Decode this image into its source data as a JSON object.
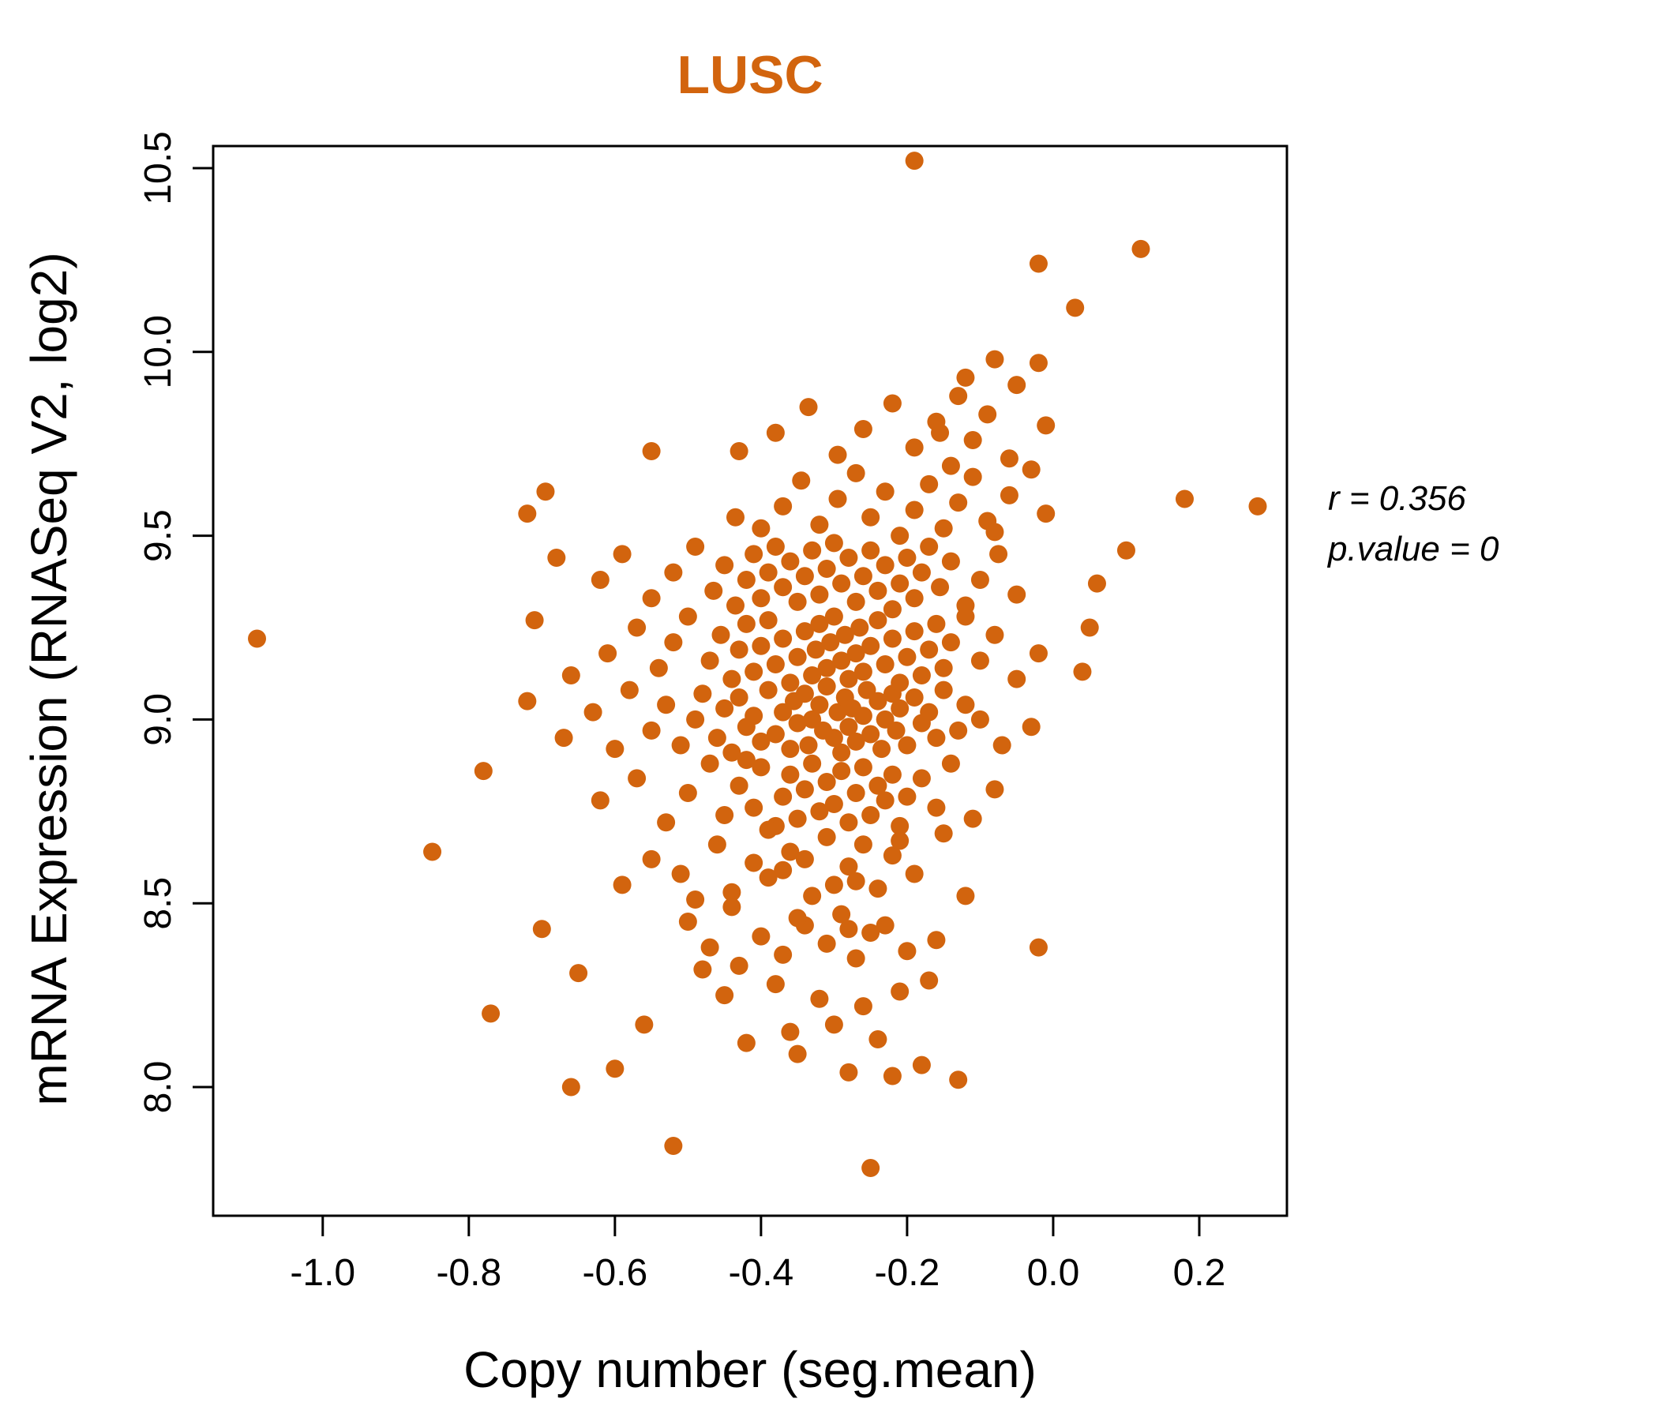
{
  "title": "LUSC",
  "colors": {
    "point": "#D2640E",
    "title": "#D2640E",
    "axis": "#000000"
  },
  "annotation": {
    "line1": "r = 0.356",
    "line2": "p.value = 0"
  },
  "chart_data": {
    "type": "scatter",
    "title": "LUSC",
    "xlabel": "Copy number (seg.mean)",
    "ylabel": "mRNA Expression (RNASeq V2, log2)",
    "xlim": [
      -1.15,
      0.32
    ],
    "ylim": [
      7.65,
      10.56
    ],
    "xticks": [
      -1.0,
      -0.8,
      -0.6,
      -0.4,
      -0.2,
      0.0,
      0.2
    ],
    "yticks": [
      8.0,
      8.5,
      9.0,
      9.5,
      10.0,
      10.5
    ],
    "grid": false,
    "legend": "none",
    "annotations": [
      "r = 0.356",
      "p.value = 0"
    ],
    "point_color": "#D2640E",
    "points": [
      [
        -0.25,
        7.78
      ],
      [
        -0.52,
        7.84
      ],
      [
        -0.66,
        8.0
      ],
      [
        -0.6,
        8.05
      ],
      [
        -0.22,
        8.03
      ],
      [
        -0.18,
        8.06
      ],
      [
        -0.35,
        8.09
      ],
      [
        -0.13,
        8.02
      ],
      [
        -0.28,
        8.04
      ],
      [
        -0.77,
        8.2
      ],
      [
        -0.56,
        8.17
      ],
      [
        -0.42,
        8.12
      ],
      [
        -0.36,
        8.15
      ],
      [
        -0.3,
        8.17
      ],
      [
        -0.26,
        8.22
      ],
      [
        -0.21,
        8.26
      ],
      [
        -0.45,
        8.25
      ],
      [
        -0.38,
        8.28
      ],
      [
        -0.24,
        8.13
      ],
      [
        -0.17,
        8.29
      ],
      [
        -0.32,
        8.24
      ],
      [
        -0.7,
        8.43
      ],
      [
        -0.65,
        8.31
      ],
      [
        -0.47,
        8.38
      ],
      [
        -0.5,
        8.45
      ],
      [
        -0.43,
        8.33
      ],
      [
        -0.4,
        8.41
      ],
      [
        -0.37,
        8.36
      ],
      [
        -0.34,
        8.44
      ],
      [
        -0.31,
        8.39
      ],
      [
        -0.29,
        8.47
      ],
      [
        -0.27,
        8.35
      ],
      [
        -0.25,
        8.42
      ],
      [
        -0.23,
        8.44
      ],
      [
        -0.2,
        8.37
      ],
      [
        -0.16,
        8.4
      ],
      [
        -0.02,
        8.38
      ],
      [
        -0.44,
        8.49
      ],
      [
        -0.35,
        8.46
      ],
      [
        -0.28,
        8.43
      ],
      [
        -0.48,
        8.32
      ],
      [
        -0.85,
        8.64
      ],
      [
        -0.59,
        8.55
      ],
      [
        -0.55,
        8.62
      ],
      [
        -0.51,
        8.58
      ],
      [
        -0.46,
        8.66
      ],
      [
        -0.44,
        8.53
      ],
      [
        -0.41,
        8.61
      ],
      [
        -0.39,
        8.57
      ],
      [
        -0.36,
        8.64
      ],
      [
        -0.33,
        8.52
      ],
      [
        -0.31,
        8.68
      ],
      [
        -0.3,
        8.55
      ],
      [
        -0.28,
        8.6
      ],
      [
        -0.26,
        8.66
      ],
      [
        -0.24,
        8.54
      ],
      [
        -0.22,
        8.63
      ],
      [
        -0.19,
        8.58
      ],
      [
        -0.15,
        8.69
      ],
      [
        -0.12,
        8.52
      ],
      [
        -0.49,
        8.51
      ],
      [
        -0.37,
        8.59
      ],
      [
        -0.27,
        8.56
      ],
      [
        -0.21,
        8.67
      ],
      [
        -0.34,
        8.62
      ],
      [
        -0.78,
        8.86
      ],
      [
        -0.62,
        8.78
      ],
      [
        -0.57,
        8.84
      ],
      [
        -0.53,
        8.72
      ],
      [
        -0.5,
        8.8
      ],
      [
        -0.47,
        8.88
      ],
      [
        -0.45,
        8.74
      ],
      [
        -0.43,
        8.82
      ],
      [
        -0.41,
        8.76
      ],
      [
        -0.4,
        8.87
      ],
      [
        -0.38,
        8.71
      ],
      [
        -0.37,
        8.79
      ],
      [
        -0.36,
        8.85
      ],
      [
        -0.35,
        8.73
      ],
      [
        -0.34,
        8.81
      ],
      [
        -0.33,
        8.88
      ],
      [
        -0.32,
        8.75
      ],
      [
        -0.31,
        8.83
      ],
      [
        -0.3,
        8.77
      ],
      [
        -0.29,
        8.86
      ],
      [
        -0.28,
        8.72
      ],
      [
        -0.27,
        8.8
      ],
      [
        -0.26,
        8.87
      ],
      [
        -0.25,
        8.74
      ],
      [
        -0.24,
        8.82
      ],
      [
        -0.23,
        8.78
      ],
      [
        -0.22,
        8.85
      ],
      [
        -0.21,
        8.71
      ],
      [
        -0.2,
        8.79
      ],
      [
        -0.18,
        8.84
      ],
      [
        -0.16,
        8.76
      ],
      [
        -0.14,
        8.88
      ],
      [
        -0.11,
        8.73
      ],
      [
        -0.08,
        8.81
      ],
      [
        -0.42,
        8.89
      ],
      [
        -0.39,
        8.7
      ],
      [
        -0.72,
        9.05
      ],
      [
        -0.67,
        8.95
      ],
      [
        -0.63,
        9.02
      ],
      [
        -0.6,
        8.92
      ],
      [
        -0.58,
        9.08
      ],
      [
        -0.55,
        8.97
      ],
      [
        -0.53,
        9.04
      ],
      [
        -0.51,
        8.93
      ],
      [
        -0.49,
        9.0
      ],
      [
        -0.48,
        9.07
      ],
      [
        -0.46,
        8.95
      ],
      [
        -0.45,
        9.03
      ],
      [
        -0.44,
        8.91
      ],
      [
        -0.43,
        9.06
      ],
      [
        -0.42,
        8.98
      ],
      [
        -0.41,
        9.01
      ],
      [
        -0.4,
        8.94
      ],
      [
        -0.39,
        9.08
      ],
      [
        -0.38,
        8.96
      ],
      [
        -0.37,
        9.02
      ],
      [
        -0.36,
        8.92
      ],
      [
        -0.355,
        9.05
      ],
      [
        -0.35,
        8.99
      ],
      [
        -0.34,
        9.07
      ],
      [
        -0.335,
        8.93
      ],
      [
        -0.33,
        9.0
      ],
      [
        -0.32,
        9.04
      ],
      [
        -0.315,
        8.97
      ],
      [
        -0.31,
        9.09
      ],
      [
        -0.3,
        8.95
      ],
      [
        -0.295,
        9.02
      ],
      [
        -0.29,
        8.91
      ],
      [
        -0.285,
        9.06
      ],
      [
        -0.28,
        8.98
      ],
      [
        -0.275,
        9.03
      ],
      [
        -0.27,
        8.94
      ],
      [
        -0.26,
        9.01
      ],
      [
        -0.255,
        9.08
      ],
      [
        -0.25,
        8.96
      ],
      [
        -0.24,
        9.05
      ],
      [
        -0.235,
        8.92
      ],
      [
        -0.23,
        9.0
      ],
      [
        -0.22,
        9.07
      ],
      [
        -0.215,
        8.97
      ],
      [
        -0.21,
        9.03
      ],
      [
        -0.2,
        8.93
      ],
      [
        -0.19,
        9.06
      ],
      [
        -0.18,
        8.99
      ],
      [
        -0.17,
        9.02
      ],
      [
        -0.16,
        8.95
      ],
      [
        -0.15,
        9.08
      ],
      [
        -0.13,
        8.97
      ],
      [
        -0.12,
        9.04
      ],
      [
        -0.1,
        9.0
      ],
      [
        -0.07,
        8.93
      ],
      [
        -0.03,
        8.98
      ],
      [
        -1.09,
        9.22
      ],
      [
        -0.71,
        9.27
      ],
      [
        -0.66,
        9.12
      ],
      [
        -0.61,
        9.18
      ],
      [
        -0.57,
        9.25
      ],
      [
        -0.54,
        9.14
      ],
      [
        -0.52,
        9.21
      ],
      [
        -0.5,
        9.28
      ],
      [
        -0.47,
        9.16
      ],
      [
        -0.455,
        9.23
      ],
      [
        -0.44,
        9.11
      ],
      [
        -0.43,
        9.19
      ],
      [
        -0.42,
        9.26
      ],
      [
        -0.41,
        9.13
      ],
      [
        -0.4,
        9.2
      ],
      [
        -0.39,
        9.27
      ],
      [
        -0.38,
        9.15
      ],
      [
        -0.37,
        9.22
      ],
      [
        -0.36,
        9.1
      ],
      [
        -0.35,
        9.17
      ],
      [
        -0.34,
        9.24
      ],
      [
        -0.33,
        9.12
      ],
      [
        -0.325,
        9.19
      ],
      [
        -0.32,
        9.26
      ],
      [
        -0.31,
        9.14
      ],
      [
        -0.305,
        9.21
      ],
      [
        -0.3,
        9.28
      ],
      [
        -0.29,
        9.16
      ],
      [
        -0.285,
        9.23
      ],
      [
        -0.28,
        9.11
      ],
      [
        -0.27,
        9.18
      ],
      [
        -0.265,
        9.25
      ],
      [
        -0.26,
        9.13
      ],
      [
        -0.25,
        9.2
      ],
      [
        -0.24,
        9.27
      ],
      [
        -0.23,
        9.15
      ],
      [
        -0.22,
        9.22
      ],
      [
        -0.21,
        9.1
      ],
      [
        -0.2,
        9.17
      ],
      [
        -0.19,
        9.24
      ],
      [
        -0.18,
        9.12
      ],
      [
        -0.17,
        9.19
      ],
      [
        -0.16,
        9.26
      ],
      [
        -0.15,
        9.14
      ],
      [
        -0.14,
        9.21
      ],
      [
        -0.12,
        9.28
      ],
      [
        -0.1,
        9.16
      ],
      [
        -0.08,
        9.23
      ],
      [
        -0.05,
        9.11
      ],
      [
        -0.02,
        9.18
      ],
      [
        0.04,
        9.13
      ],
      [
        0.05,
        9.25
      ],
      [
        -0.68,
        9.44
      ],
      [
        -0.62,
        9.38
      ],
      [
        -0.59,
        9.45
      ],
      [
        -0.55,
        9.33
      ],
      [
        -0.52,
        9.4
      ],
      [
        -0.49,
        9.47
      ],
      [
        -0.465,
        9.35
      ],
      [
        -0.45,
        9.42
      ],
      [
        -0.435,
        9.31
      ],
      [
        -0.42,
        9.38
      ],
      [
        -0.41,
        9.45
      ],
      [
        -0.4,
        9.33
      ],
      [
        -0.39,
        9.4
      ],
      [
        -0.38,
        9.47
      ],
      [
        -0.37,
        9.36
      ],
      [
        -0.36,
        9.43
      ],
      [
        -0.35,
        9.32
      ],
      [
        -0.34,
        9.39
      ],
      [
        -0.33,
        9.46
      ],
      [
        -0.32,
        9.34
      ],
      [
        -0.31,
        9.41
      ],
      [
        -0.3,
        9.48
      ],
      [
        -0.29,
        9.37
      ],
      [
        -0.28,
        9.44
      ],
      [
        -0.27,
        9.32
      ],
      [
        -0.26,
        9.39
      ],
      [
        -0.25,
        9.46
      ],
      [
        -0.24,
        9.35
      ],
      [
        -0.23,
        9.42
      ],
      [
        -0.22,
        9.3
      ],
      [
        -0.21,
        9.37
      ],
      [
        -0.2,
        9.44
      ],
      [
        -0.19,
        9.33
      ],
      [
        -0.18,
        9.4
      ],
      [
        -0.17,
        9.47
      ],
      [
        -0.155,
        9.36
      ],
      [
        -0.14,
        9.43
      ],
      [
        -0.12,
        9.31
      ],
      [
        -0.1,
        9.38
      ],
      [
        -0.075,
        9.45
      ],
      [
        -0.05,
        9.34
      ],
      [
        0.06,
        9.37
      ],
      [
        -0.72,
        9.56
      ],
      [
        -0.695,
        9.62
      ],
      [
        -0.435,
        9.55
      ],
      [
        -0.4,
        9.52
      ],
      [
        -0.37,
        9.58
      ],
      [
        -0.345,
        9.65
      ],
      [
        -0.32,
        9.53
      ],
      [
        -0.295,
        9.6
      ],
      [
        -0.27,
        9.67
      ],
      [
        -0.25,
        9.55
      ],
      [
        -0.23,
        9.62
      ],
      [
        -0.21,
        9.5
      ],
      [
        -0.19,
        9.57
      ],
      [
        -0.17,
        9.64
      ],
      [
        -0.15,
        9.52
      ],
      [
        -0.13,
        9.59
      ],
      [
        -0.11,
        9.66
      ],
      [
        -0.09,
        9.54
      ],
      [
        -0.06,
        9.61
      ],
      [
        -0.03,
        9.68
      ],
      [
        -0.01,
        9.56
      ],
      [
        0.1,
        9.46
      ],
      [
        0.18,
        9.6
      ],
      [
        0.28,
        9.58
      ],
      [
        -0.14,
        9.69
      ],
      [
        -0.08,
        9.51
      ],
      [
        -0.55,
        9.73
      ],
      [
        -0.43,
        9.73
      ],
      [
        -0.38,
        9.78
      ],
      [
        -0.335,
        9.85
      ],
      [
        -0.295,
        9.72
      ],
      [
        -0.26,
        9.79
      ],
      [
        -0.22,
        9.86
      ],
      [
        -0.19,
        9.74
      ],
      [
        -0.16,
        9.81
      ],
      [
        -0.13,
        9.88
      ],
      [
        -0.11,
        9.76
      ],
      [
        -0.09,
        9.83
      ],
      [
        -0.06,
        9.71
      ],
      [
        -0.155,
        9.78
      ],
      [
        -0.01,
        9.8
      ],
      [
        -0.12,
        9.93
      ],
      [
        -0.08,
        9.98
      ],
      [
        -0.02,
        9.97
      ],
      [
        0.03,
        10.12
      ],
      [
        -0.05,
        9.91
      ],
      [
        -0.02,
        10.24
      ],
      [
        0.12,
        10.28
      ],
      [
        -0.19,
        10.52
      ]
    ]
  }
}
